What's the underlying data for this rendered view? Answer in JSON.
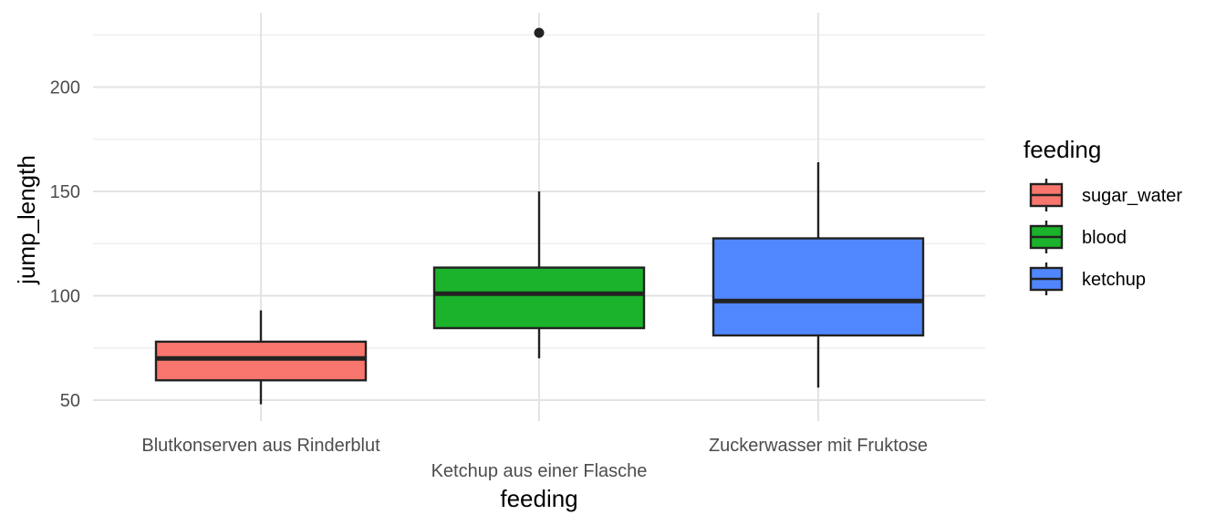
{
  "chart_data": {
    "type": "boxplot",
    "title": "",
    "xlabel": "feeding",
    "ylabel": "jump_length",
    "ylim": [
      45,
      234
    ],
    "y_ticks": [
      50,
      100,
      150,
      200
    ],
    "grid": true,
    "legend_position": "right",
    "legend_title": "feeding",
    "categories": [
      "Blutkonserven aus Rinderblut",
      "Ketchup aus einer Flasche",
      "Zuckerwasser mit Fruktose"
    ],
    "series": [
      {
        "name": "sugar_water",
        "color": "#F8766D",
        "category": "Blutkonserven aus Rinderblut",
        "whisker_low": 48,
        "q1": 59.5,
        "median": 70,
        "q3": 78,
        "whisker_high": 93,
        "outliers": []
      },
      {
        "name": "blood",
        "color": "#1AB32B",
        "category": "Ketchup aus einer Flasche",
        "whisker_low": 70,
        "q1": 84.5,
        "median": 101,
        "q3": 113.5,
        "whisker_high": 150,
        "outliers": [
          226
        ]
      },
      {
        "name": "ketchup",
        "color": "#5087FF",
        "category": "Zuckerwasser mit Fruktose",
        "whisker_low": 56,
        "q1": 81,
        "median": 97.5,
        "q3": 127.5,
        "whisker_high": 164,
        "outliers": []
      }
    ]
  }
}
